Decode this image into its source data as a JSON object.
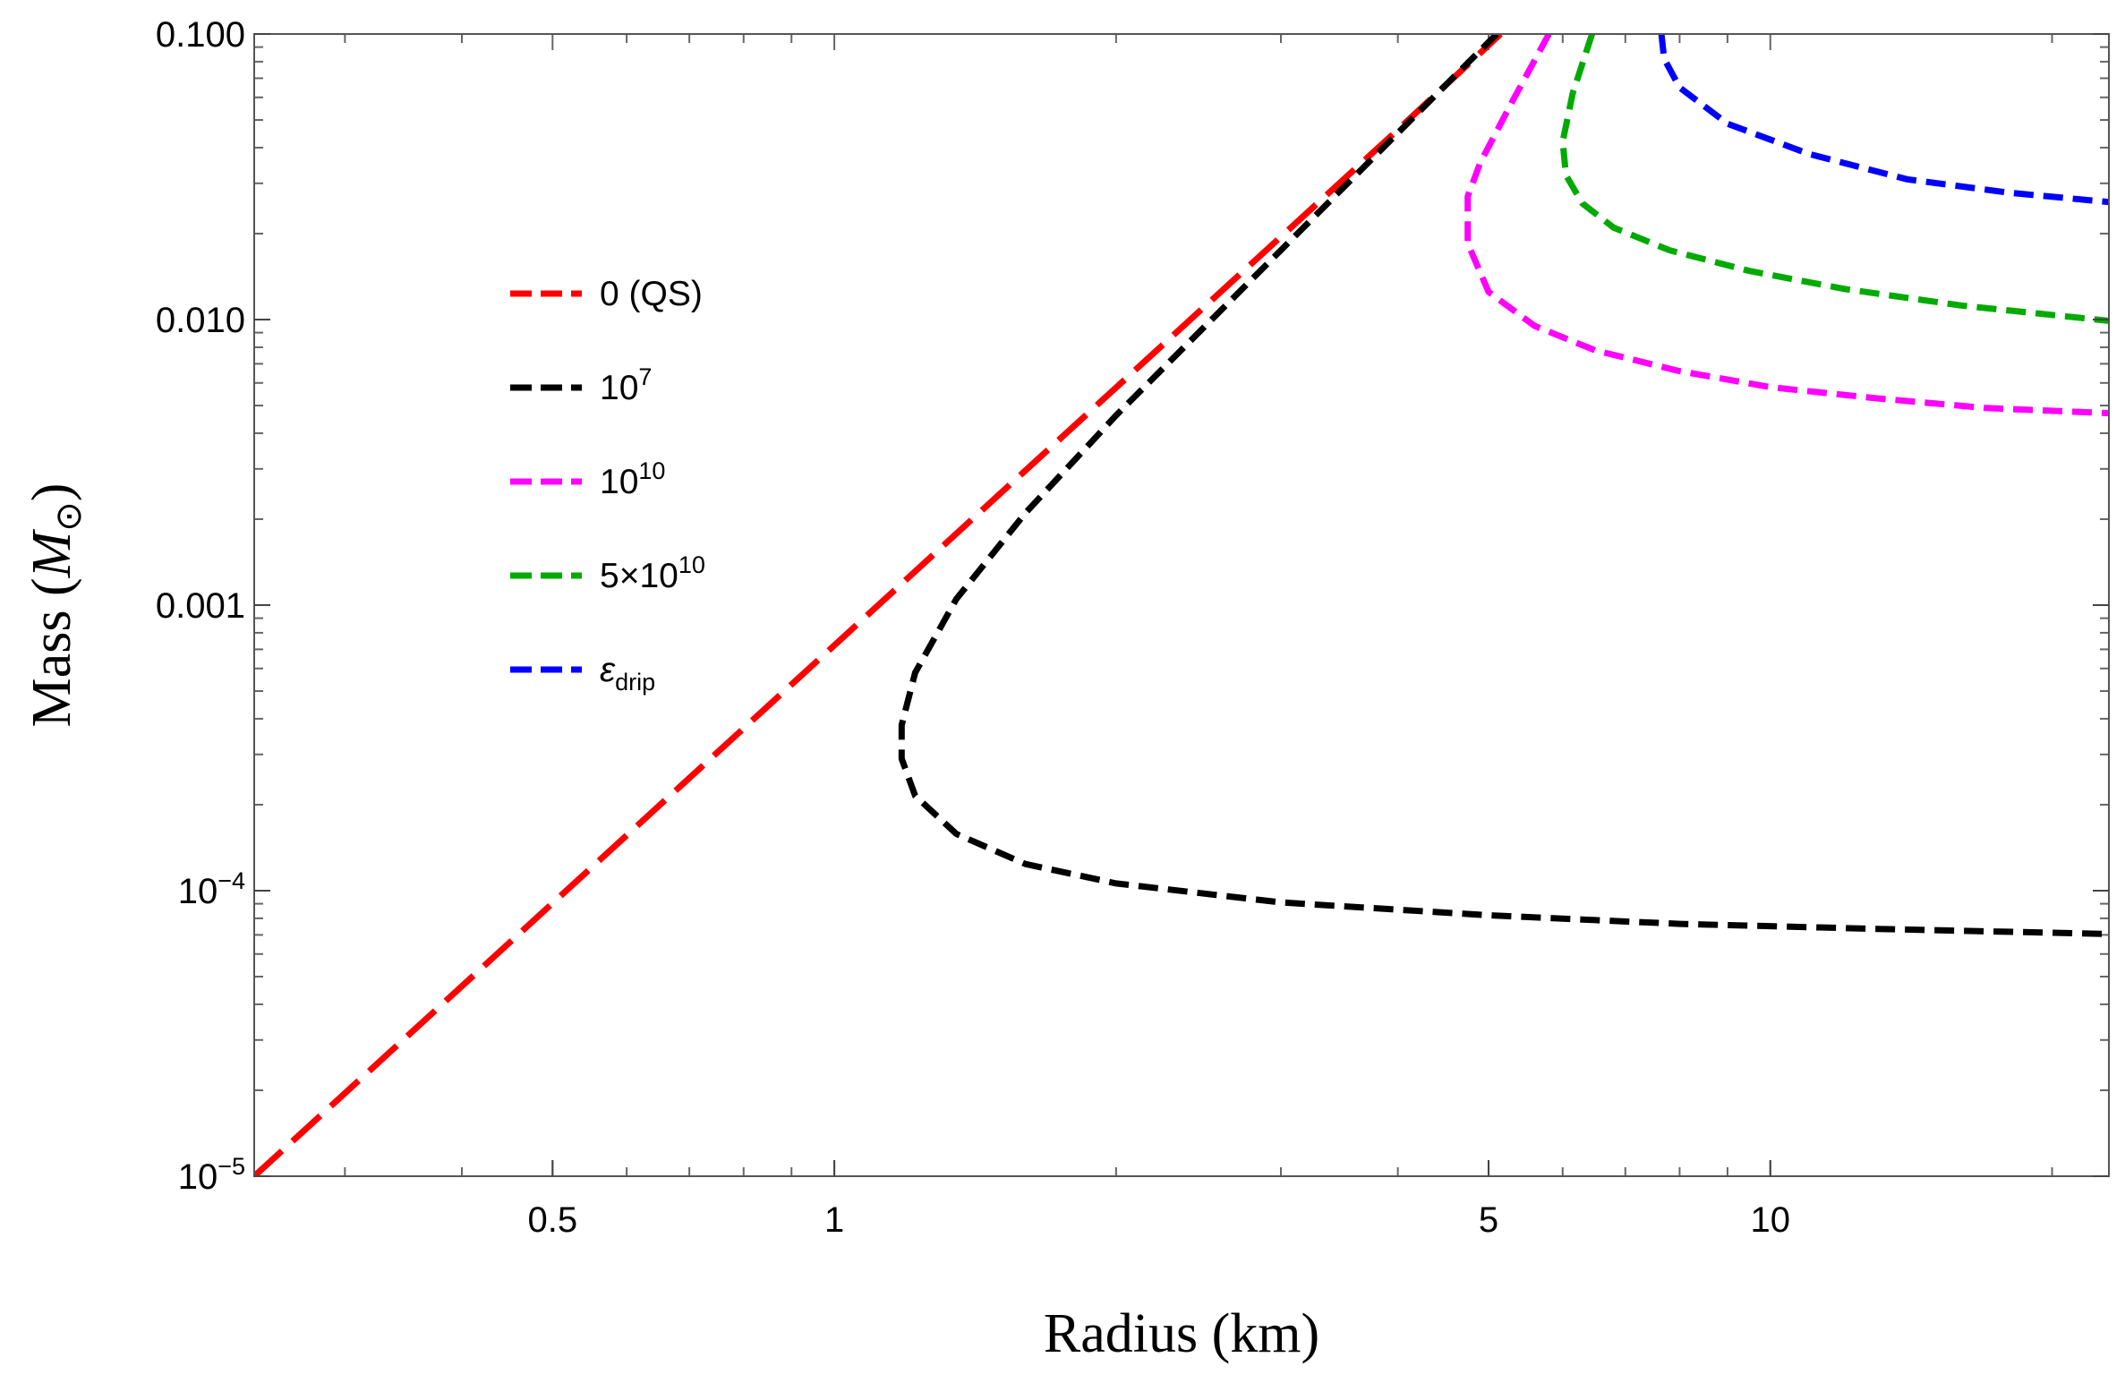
{
  "chart_data": {
    "type": "line",
    "title": "",
    "xlabel": "Radius (km)",
    "ylabel": "Mass",
    "ylabel_symbol": "M",
    "ylabel_sub": "⊙",
    "xscale": "log",
    "yscale": "log",
    "xlim": [
      0.24,
      23
    ],
    "ylim": [
      1e-05,
      0.1
    ],
    "x_ticks": [
      {
        "value": 0.5,
        "label": "0.5"
      },
      {
        "value": 1,
        "label": "1"
      },
      {
        "value": 5,
        "label": "5"
      },
      {
        "value": 10,
        "label": "10"
      }
    ],
    "y_ticks": [
      {
        "value": 0.1,
        "label": "0.100"
      },
      {
        "value": 0.01,
        "label": "0.010"
      },
      {
        "value": 0.001,
        "label": "0.001"
      },
      {
        "value": 0.0001,
        "label": "10",
        "sup": "−4"
      },
      {
        "value": 1e-05,
        "label": "10",
        "sup": "−5"
      }
    ],
    "legend_placement": "upper-left",
    "legend_title": "",
    "series": [
      {
        "name": "0 (QS)",
        "label": "0 (QS)",
        "color": "#ff0000",
        "dash": "long",
        "points": [
          [
            0.24,
            1e-05
          ],
          [
            0.5,
            9.04e-05
          ],
          [
            1.0,
            0.000723
          ],
          [
            2.0,
            0.00578
          ],
          [
            3.0,
            0.0195
          ],
          [
            4.0,
            0.0462
          ],
          [
            5.15,
            0.1
          ]
        ]
      },
      {
        "name": "10^7",
        "label": "10",
        "sup": "7",
        "color": "#000000",
        "dash": "short",
        "points": [
          [
            5.1,
            0.1
          ],
          [
            4.0,
            0.045
          ],
          [
            3.0,
            0.0175
          ],
          [
            2.0,
            0.00462
          ],
          [
            1.6,
            0.0021
          ],
          [
            1.35,
            0.00105
          ],
          [
            1.22,
            0.00058
          ],
          [
            1.18,
            0.00038
          ],
          [
            1.18,
            0.00029
          ],
          [
            1.22,
            0.000215
          ],
          [
            1.35,
            0.000158
          ],
          [
            1.6,
            0.000124
          ],
          [
            2.0,
            0.000106
          ],
          [
            3.0,
            9.1e-05
          ],
          [
            5.0,
            8.2e-05
          ],
          [
            8.0,
            7.65e-05
          ],
          [
            13.0,
            7.35e-05
          ],
          [
            23.0,
            7.05e-05
          ]
        ]
      },
      {
        "name": "10^10",
        "label": "10",
        "sup": "10",
        "color": "#ff00ff",
        "dash": "short",
        "points": [
          [
            5.8,
            0.1
          ],
          [
            5.3,
            0.058
          ],
          [
            4.9,
            0.0355
          ],
          [
            4.75,
            0.027
          ],
          [
            4.75,
            0.0185
          ],
          [
            5.0,
            0.0125
          ],
          [
            5.6,
            0.0095
          ],
          [
            6.5,
            0.0078
          ],
          [
            8.0,
            0.0066
          ],
          [
            10.0,
            0.0058
          ],
          [
            13.0,
            0.0053
          ],
          [
            17.0,
            0.0049
          ],
          [
            23.0,
            0.0047
          ]
        ]
      },
      {
        "name": "5×10^10",
        "label": "5×10",
        "sup": "10",
        "color": "#00aa00",
        "dash": "short",
        "points": [
          [
            6.45,
            0.1
          ],
          [
            6.15,
            0.062
          ],
          [
            6.0,
            0.042
          ],
          [
            6.05,
            0.032
          ],
          [
            6.3,
            0.0255
          ],
          [
            6.8,
            0.021
          ],
          [
            7.8,
            0.0175
          ],
          [
            9.5,
            0.0148
          ],
          [
            12.0,
            0.0128
          ],
          [
            16.0,
            0.0112
          ],
          [
            23.0,
            0.0099
          ]
        ]
      },
      {
        "name": "ε_drip",
        "label": "ε",
        "sub": "drip",
        "color": "#0000ff",
        "dash": "short",
        "points": [
          [
            7.65,
            0.1
          ],
          [
            7.7,
            0.082
          ],
          [
            8.0,
            0.065
          ],
          [
            9.0,
            0.0485
          ],
          [
            11.0,
            0.038
          ],
          [
            14.0,
            0.031
          ],
          [
            18.0,
            0.0278
          ],
          [
            23.0,
            0.0258
          ]
        ]
      }
    ]
  }
}
